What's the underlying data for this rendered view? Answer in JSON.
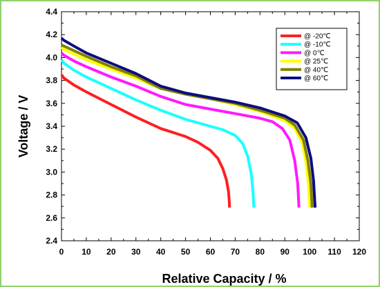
{
  "chart_data": {
    "type": "line",
    "title": "",
    "xlabel": "Relative Capacity / %",
    "ylabel": "Voltage / V",
    "xlim": [
      0,
      120
    ],
    "ylim": [
      2.4,
      4.4
    ],
    "xticks": [
      "0",
      "10",
      "20",
      "30",
      "40",
      "50",
      "60",
      "70",
      "80",
      "90",
      "100",
      "110",
      "120"
    ],
    "yticks": [
      "2.4",
      "2.6",
      "2.8",
      "3.0",
      "3.2",
      "3.4",
      "3.6",
      "3.8",
      "4.0",
      "4.2",
      "4.4"
    ],
    "grid": false,
    "legend_position": "top-right",
    "series": [
      {
        "name": "@ -20℃",
        "color": "#ff1f1f",
        "points": [
          [
            0,
            3.85
          ],
          [
            1,
            3.82
          ],
          [
            5,
            3.76
          ],
          [
            10,
            3.7
          ],
          [
            20,
            3.59
          ],
          [
            30,
            3.48
          ],
          [
            40,
            3.38
          ],
          [
            50,
            3.31
          ],
          [
            55,
            3.26
          ],
          [
            60,
            3.19
          ],
          [
            63,
            3.12
          ],
          [
            65,
            3.03
          ],
          [
            66.5,
            2.93
          ],
          [
            67.3,
            2.83
          ],
          [
            67.6,
            2.75
          ],
          [
            67.7,
            2.69
          ]
        ]
      },
      {
        "name": "@ -10℃",
        "color": "#19ffff",
        "points": [
          [
            0,
            3.98
          ],
          [
            1,
            3.95
          ],
          [
            5,
            3.89
          ],
          [
            10,
            3.83
          ],
          [
            20,
            3.73
          ],
          [
            30,
            3.63
          ],
          [
            40,
            3.54
          ],
          [
            50,
            3.46
          ],
          [
            60,
            3.4
          ],
          [
            65,
            3.37
          ],
          [
            70,
            3.32
          ],
          [
            73,
            3.25
          ],
          [
            75,
            3.14
          ],
          [
            76.5,
            2.98
          ],
          [
            77.2,
            2.82
          ],
          [
            77.5,
            2.69
          ]
        ]
      },
      {
        "name": "@ 0℃",
        "color": "#ff19ff",
        "points": [
          [
            0,
            4.04
          ],
          [
            1,
            4.02
          ],
          [
            5,
            3.97
          ],
          [
            10,
            3.92
          ],
          [
            20,
            3.83
          ],
          [
            30,
            3.75
          ],
          [
            40,
            3.66
          ],
          [
            50,
            3.59
          ],
          [
            60,
            3.55
          ],
          [
            70,
            3.51
          ],
          [
            80,
            3.47
          ],
          [
            85,
            3.44
          ],
          [
            89,
            3.38
          ],
          [
            92,
            3.28
          ],
          [
            94,
            3.1
          ],
          [
            95.2,
            2.9
          ],
          [
            95.7,
            2.69
          ]
        ]
      },
      {
        "name": "@ 25℃",
        "color": "#ffff00",
        "points": [
          [
            0,
            4.09
          ],
          [
            1,
            4.07
          ],
          [
            5,
            4.03
          ],
          [
            10,
            3.98
          ],
          [
            20,
            3.9
          ],
          [
            30,
            3.82
          ],
          [
            40,
            3.73
          ],
          [
            50,
            3.68
          ],
          [
            60,
            3.64
          ],
          [
            70,
            3.59
          ],
          [
            80,
            3.53
          ],
          [
            90,
            3.45
          ],
          [
            94,
            3.38
          ],
          [
            97,
            3.26
          ],
          [
            98.6,
            3.08
          ],
          [
            99.6,
            2.88
          ],
          [
            100.1,
            2.69
          ]
        ]
      },
      {
        "name": "@ 40℃",
        "color": "#808000",
        "points": [
          [
            0,
            4.11
          ],
          [
            1,
            4.1
          ],
          [
            5,
            4.06
          ],
          [
            10,
            4.01
          ],
          [
            20,
            3.92
          ],
          [
            30,
            3.84
          ],
          [
            40,
            3.73
          ],
          [
            50,
            3.68
          ],
          [
            60,
            3.64
          ],
          [
            70,
            3.6
          ],
          [
            80,
            3.54
          ],
          [
            90,
            3.47
          ],
          [
            94,
            3.41
          ],
          [
            97.5,
            3.28
          ],
          [
            99.3,
            3.1
          ],
          [
            100.5,
            2.9
          ],
          [
            101,
            2.69
          ]
        ]
      },
      {
        "name": "@ 60℃",
        "color": "#0c0c80",
        "points": [
          [
            0,
            4.17
          ],
          [
            1,
            4.15
          ],
          [
            5,
            4.1
          ],
          [
            10,
            4.04
          ],
          [
            20,
            3.95
          ],
          [
            30,
            3.86
          ],
          [
            40,
            3.75
          ],
          [
            50,
            3.69
          ],
          [
            60,
            3.65
          ],
          [
            70,
            3.61
          ],
          [
            80,
            3.56
          ],
          [
            90,
            3.49
          ],
          [
            95,
            3.43
          ],
          [
            98.5,
            3.3
          ],
          [
            100.5,
            3.12
          ],
          [
            101.6,
            2.92
          ],
          [
            102.2,
            2.69
          ]
        ]
      }
    ]
  }
}
